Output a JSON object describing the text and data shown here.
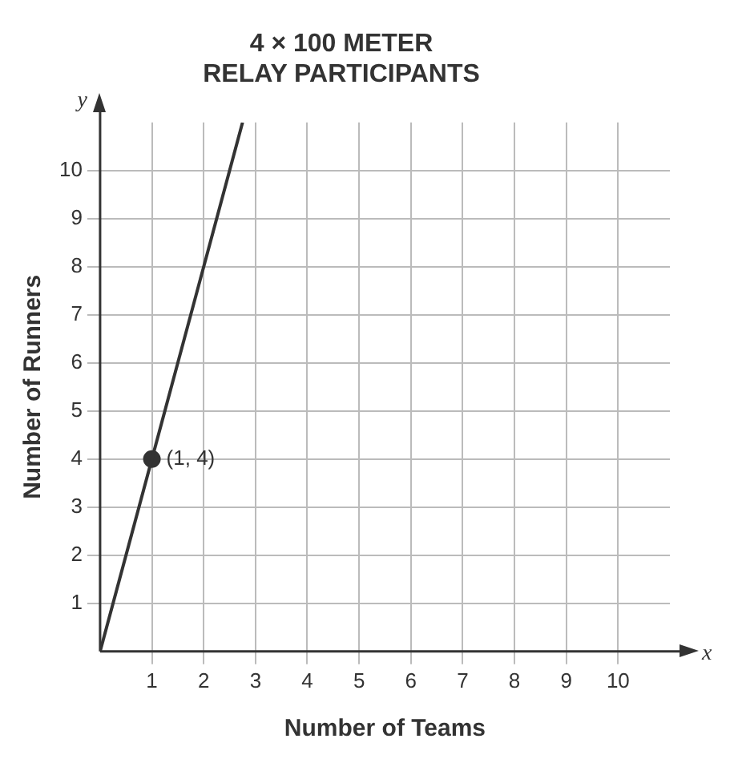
{
  "chart_data": {
    "type": "line",
    "title": "4 × 100 METER\nRELAY PARTICIPANTS",
    "xlabel": "Number of Teams",
    "ylabel": "Number of Runners",
    "series": [
      {
        "type": "line",
        "x": [
          0,
          2.75
        ],
        "values": [
          0,
          11
        ],
        "color": "#333333",
        "marker": "none"
      },
      {
        "type": "scatter",
        "x": [
          1
        ],
        "values": [
          4
        ],
        "color": "#333333",
        "marker": "circle"
      }
    ],
    "annotations": [
      "y",
      "x",
      {
        "text": "(1, 4)",
        "x": 1,
        "y": 4
      }
    ],
    "xlim": [
      0,
      11
    ],
    "ylim": [
      0,
      11
    ],
    "xticks": [
      1,
      2,
      3,
      4,
      5,
      6,
      7,
      8,
      9,
      10
    ],
    "yticks": [
      1,
      2,
      3,
      4,
      5,
      6,
      7,
      8,
      9,
      10
    ],
    "grid": true,
    "legend": false
  }
}
